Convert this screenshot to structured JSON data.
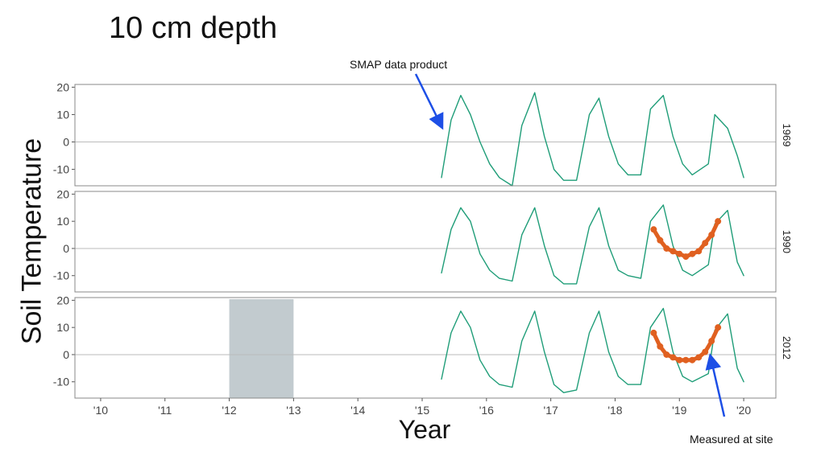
{
  "page": {
    "title": "10 cm depth"
  },
  "annotations": {
    "smap": "SMAP data product",
    "site": "Measured at site"
  },
  "colors": {
    "smap_series": "#1f9d78",
    "site_series": "#e06020",
    "highlight_band": "#c2cbcf",
    "arrow": "#1d4fe6",
    "zero_line": "#bbbbbb",
    "panel_border": "#888888"
  },
  "chart_data": {
    "type": "line",
    "title": "",
    "xlabel": "Year",
    "ylabel": "Soil Temperature",
    "xlim": [
      2009.6,
      2020.5
    ],
    "ylim": [
      -16,
      21
    ],
    "x_ticks": [
      2010,
      2011,
      2012,
      2013,
      2014,
      2015,
      2016,
      2017,
      2018,
      2019,
      2020
    ],
    "x_tick_labels": [
      "'10",
      "'11",
      "'12",
      "'13",
      "'14",
      "'15",
      "'16",
      "'17",
      "'18",
      "'19",
      "'20"
    ],
    "y_ticks": [
      -10,
      0,
      10,
      20
    ],
    "y_tick_labels": [
      "-10",
      "0",
      "10",
      "20"
    ],
    "grid": false,
    "zero_reference_line": true,
    "facets": [
      {
        "label": "1969",
        "series": [
          {
            "name": "SMAP data product",
            "x": [
              2015.3,
              2015.45,
              2015.6,
              2015.75,
              2015.9,
              2016.05,
              2016.2,
              2016.4,
              2016.55,
              2016.75,
              2016.9,
              2017.05,
              2017.2,
              2017.4,
              2017.6,
              2017.75,
              2017.9,
              2018.05,
              2018.2,
              2018.4,
              2018.55,
              2018.75,
              2018.9,
              2019.05,
              2019.2,
              2019.45,
              2019.55,
              2019.75,
              2019.9,
              2020.0
            ],
            "y": [
              -13,
              8,
              17,
              10,
              0,
              -8,
              -13,
              -16,
              6,
              18,
              2,
              -10,
              -14,
              -14,
              10,
              16,
              2,
              -8,
              -12,
              -12,
              12,
              17,
              2,
              -8,
              -12,
              -8,
              10,
              5,
              -5,
              -13
            ]
          }
        ]
      },
      {
        "label": "1990",
        "series": [
          {
            "name": "SMAP data product",
            "x": [
              2015.3,
              2015.45,
              2015.6,
              2015.75,
              2015.9,
              2016.05,
              2016.2,
              2016.4,
              2016.55,
              2016.75,
              2016.9,
              2017.05,
              2017.2,
              2017.4,
              2017.6,
              2017.75,
              2017.9,
              2018.05,
              2018.2,
              2018.4,
              2018.55,
              2018.75,
              2018.9,
              2019.05,
              2019.2,
              2019.45,
              2019.55,
              2019.75,
              2019.9,
              2020.0
            ],
            "y": [
              -9,
              7,
              15,
              10,
              -2,
              -8,
              -11,
              -12,
              5,
              15,
              1,
              -10,
              -13,
              -13,
              8,
              15,
              1,
              -8,
              -10,
              -11,
              10,
              16,
              1,
              -8,
              -10,
              -6,
              9,
              14,
              -5,
              -10
            ]
          },
          {
            "name": "Measured at site",
            "x": [
              2018.6,
              2018.7,
              2018.8,
              2018.9,
              2019.0,
              2019.1,
              2019.2,
              2019.3,
              2019.4,
              2019.5,
              2019.6
            ],
            "y": [
              7,
              3,
              0,
              -1,
              -2,
              -3,
              -2,
              -1,
              2,
              5,
              10
            ]
          }
        ]
      },
      {
        "label": "2012",
        "series": [
          {
            "name": "SMAP data product",
            "x": [
              2015.3,
              2015.45,
              2015.6,
              2015.75,
              2015.9,
              2016.05,
              2016.2,
              2016.4,
              2016.55,
              2016.75,
              2016.9,
              2017.05,
              2017.2,
              2017.4,
              2017.6,
              2017.75,
              2017.9,
              2018.05,
              2018.2,
              2018.4,
              2018.55,
              2018.75,
              2018.9,
              2019.05,
              2019.2,
              2019.45,
              2019.55,
              2019.75,
              2019.9,
              2020.0
            ],
            "y": [
              -9,
              8,
              16,
              10,
              -2,
              -8,
              -11,
              -12,
              5,
              16,
              1,
              -11,
              -14,
              -13,
              8,
              16,
              1,
              -8,
              -11,
              -11,
              10,
              17,
              1,
              -8,
              -10,
              -7,
              9,
              15,
              -5,
              -10
            ]
          },
          {
            "name": "Measured at site",
            "x": [
              2018.6,
              2018.7,
              2018.8,
              2018.9,
              2019.0,
              2019.1,
              2019.2,
              2019.3,
              2019.4,
              2019.5,
              2019.6
            ],
            "y": [
              8,
              3,
              0,
              -1,
              -2,
              -2,
              -2,
              -1,
              1,
              5,
              10
            ]
          }
        ],
        "shaded_interval": [
          2012.0,
          2013.0
        ]
      }
    ]
  }
}
